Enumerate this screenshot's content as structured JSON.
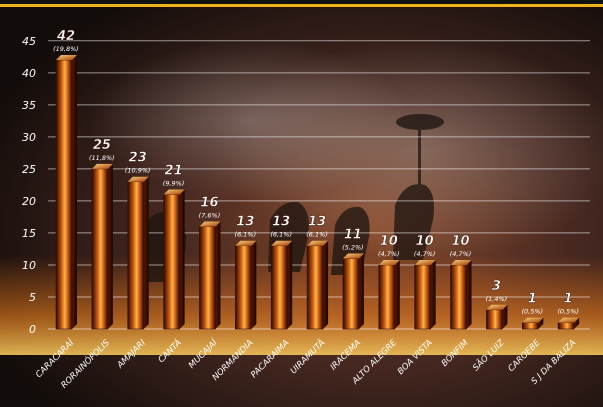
{
  "chart_data": {
    "type": "bar",
    "categories": [
      "CARACARAÍ",
      "RORAINÓPOLIS",
      "AMAJARI",
      "CANTÁ",
      "MUCAJAÍ",
      "NORMANDIA",
      "PACARAIMA",
      "UIRAMUTÃ",
      "IRACEMA",
      "ALTO ALEGRE",
      "BOA VISTA",
      "BONFIM",
      "SÃO LUIZ",
      "CAROEBE",
      "S J DA BALIZA"
    ],
    "values": [
      42,
      25,
      23,
      21,
      16,
      13,
      13,
      13,
      11,
      10,
      10,
      10,
      3,
      1,
      1
    ],
    "value_labels": [
      "42",
      "25",
      "23",
      "21",
      "16",
      "13",
      "13",
      "13",
      "11",
      "10",
      "10",
      "10",
      "3",
      "1",
      "1"
    ],
    "percent_labels": [
      "(19,8%)",
      "(11,8%)",
      "(10,9%)",
      "(9,9%)",
      "(7,6%)",
      "(6,1%)",
      "(6,1%)",
      "(6,1%)",
      "(5,2%)",
      "(4,7%)",
      "(4,7%)",
      "(4,7%)",
      "(1,4%)",
      "(0,5%)",
      "(0,5%)"
    ],
    "yticks": [
      0,
      5,
      10,
      15,
      20,
      25,
      30,
      35,
      40,
      45
    ],
    "ylim": [
      0,
      47
    ],
    "grid": true,
    "colors": {
      "bar_glow": "#ffb347",
      "bar_mid": "#b34700",
      "bar_dark": "#2a0800",
      "top_band": "#f0b21a",
      "label": "#ffffff"
    }
  }
}
